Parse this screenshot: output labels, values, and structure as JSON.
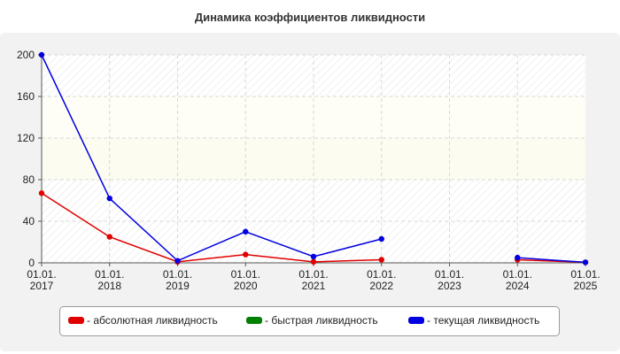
{
  "chart_data": {
    "type": "line",
    "title": "Динамика коэффициентов ликвидности",
    "xlabel": "",
    "ylabel": "",
    "categories": [
      "01.01.|2017",
      "01.01.|2018",
      "01.01.|2019",
      "01.01.|2020",
      "01.01.|2021",
      "01.01.|2022",
      "01.01.|2023",
      "01.01.|2024",
      "01.01.|2025"
    ],
    "category_lines": [
      [
        "01.01.",
        "2017"
      ],
      [
        "01.01.",
        "2018"
      ],
      [
        "01.01.",
        "2019"
      ],
      [
        "01.01.",
        "2020"
      ],
      [
        "01.01.",
        "2021"
      ],
      [
        "01.01.",
        "2022"
      ],
      [
        "01.01.",
        "2023"
      ],
      [
        "01.01.",
        "2024"
      ],
      [
        "01.01.",
        "2025"
      ]
    ],
    "ylim": [
      0,
      200
    ],
    "yticks": [
      0,
      40,
      80,
      120,
      160,
      200
    ],
    "grid": true,
    "legend_position": "bottom",
    "series": [
      {
        "name": "- абсолютная ликвидность",
        "color": "#e00000",
        "values": [
          67,
          25,
          1,
          8,
          1,
          3,
          null,
          3,
          0.5
        ]
      },
      {
        "name": "- быстрая ликвидность",
        "color": "#008000",
        "values": [
          null,
          null,
          null,
          null,
          null,
          null,
          null,
          null,
          null
        ]
      },
      {
        "name": "- текущая ликвидность",
        "color": "#0000e0",
        "values": [
          200,
          62,
          2,
          30,
          6,
          23,
          null,
          5,
          0.5
        ]
      }
    ]
  }
}
